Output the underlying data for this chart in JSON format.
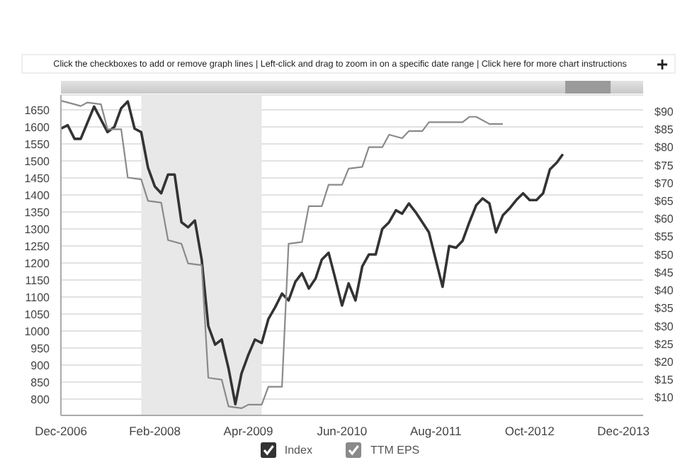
{
  "chart_data": {
    "type": "line",
    "annotations": [
      "Click the checkboxes to add or remove graph lines  |  Left-click and drag to zoom in on a specific date range  |  Click here for more chart instructions"
    ],
    "xlim": [
      "2006-12",
      "2014-03"
    ],
    "xticks": [
      {
        "value": "2006-12",
        "label": "Dec-2006"
      },
      {
        "value": "2008-02",
        "label": "Feb-2008"
      },
      {
        "value": "2009-04",
        "label": "Apr-2009"
      },
      {
        "value": "2010-06",
        "label": "Jun-2010"
      },
      {
        "value": "2011-08",
        "label": "Aug-2011"
      },
      {
        "value": "2012-10",
        "label": "Oct-2012"
      },
      {
        "value": "2013-12",
        "label": "Dec-2013"
      }
    ],
    "ylim": [
      752,
      1694
    ],
    "yticks": [
      800,
      850,
      900,
      950,
      1000,
      1050,
      1100,
      1150,
      1200,
      1250,
      1300,
      1350,
      1400,
      1450,
      1500,
      1550,
      1600,
      1650
    ],
    "y2lim": [
      5,
      94.6
    ],
    "y2ticks": [
      {
        "value": 10,
        "label": "$10"
      },
      {
        "value": 15,
        "label": "$15"
      },
      {
        "value": 20,
        "label": "$20"
      },
      {
        "value": 25,
        "label": "$25"
      },
      {
        "value": 30,
        "label": "$30"
      },
      {
        "value": 35,
        "label": "$35"
      },
      {
        "value": 40,
        "label": "$40"
      },
      {
        "value": 45,
        "label": "$45"
      },
      {
        "value": 50,
        "label": "$50"
      },
      {
        "value": 55,
        "label": "$55"
      },
      {
        "value": 60,
        "label": "$60"
      },
      {
        "value": 65,
        "label": "$65"
      },
      {
        "value": 70,
        "label": "$70"
      },
      {
        "value": 75,
        "label": "$75"
      },
      {
        "value": 80,
        "label": "$80"
      },
      {
        "value": 85,
        "label": "$85"
      },
      {
        "value": 90,
        "label": "$90"
      }
    ],
    "grid": "y",
    "legend": "bottom",
    "marker": "none",
    "line_style": "solid",
    "bands": [
      {
        "axis": "x",
        "from": "2007-12",
        "to": "2009-06",
        "color": "#e8e8e8"
      }
    ],
    "series": [
      {
        "name": "Index",
        "color": "#333333",
        "x": [
          "2006-12",
          "2007-01",
          "2007-02",
          "2007-03",
          "2007-05",
          "2007-07",
          "2007-08",
          "2007-09",
          "2007-10",
          "2007-11",
          "2007-12",
          "2008-01",
          "2008-02",
          "2008-03",
          "2008-04",
          "2008-05",
          "2008-06",
          "2008-07",
          "2008-08",
          "2008-09",
          "2008-10",
          "2008-11",
          "2008-12",
          "2009-01",
          "2009-02",
          "2009-03",
          "2009-04",
          "2009-05",
          "2009-06",
          "2009-07",
          "2009-08",
          "2009-09",
          "2009-10",
          "2009-11",
          "2009-12",
          "2010-01",
          "2010-02",
          "2010-03",
          "2010-04",
          "2010-05",
          "2010-06",
          "2010-07",
          "2010-08",
          "2010-09",
          "2010-10",
          "2010-11",
          "2010-12",
          "2011-01",
          "2011-02",
          "2011-03",
          "2011-04",
          "2011-05",
          "2011-06",
          "2011-07",
          "2011-08",
          "2011-09",
          "2011-10",
          "2011-11",
          "2011-12",
          "2012-01",
          "2012-02",
          "2012-03",
          "2012-04",
          "2012-05",
          "2012-06",
          "2012-07",
          "2012-08",
          "2012-09",
          "2012-10",
          "2012-11",
          "2012-12",
          "2013-01",
          "2013-02",
          "2013-03"
        ],
        "values": [
          1595,
          1605,
          1565,
          1565,
          1660,
          1585,
          1600,
          1655,
          1675,
          1595,
          1585,
          1480,
          1425,
          1405,
          1460,
          1460,
          1320,
          1305,
          1325,
          1210,
          1015,
          960,
          975,
          890,
          785,
          875,
          930,
          975,
          965,
          1035,
          1070,
          1110,
          1090,
          1145,
          1170,
          1125,
          1155,
          1210,
          1230,
          1155,
          1075,
          1140,
          1090,
          1190,
          1225,
          1225,
          1300,
          1320,
          1355,
          1345,
          1375,
          1350,
          1320,
          1290,
          1210,
          1130,
          1250,
          1245,
          1265,
          1320,
          1370,
          1390,
          1375,
          1290,
          1340,
          1360,
          1385,
          1405,
          1385,
          1385,
          1405,
          1475,
          1495,
          1520
        ]
      },
      {
        "name": "TTM EPS",
        "color": "#8a8a8a",
        "axis": "y2",
        "x": [
          "2006-12",
          "2007-02",
          "2007-03",
          "2007-04",
          "2007-06",
          "2007-07",
          "2007-09",
          "2007-10",
          "2007-12",
          "2008-01",
          "2008-03",
          "2008-04",
          "2008-06",
          "2008-07",
          "2008-09",
          "2008-10",
          "2008-12",
          "2009-01",
          "2009-03",
          "2009-04",
          "2009-06",
          "2009-07",
          "2009-09",
          "2009-10",
          "2009-12",
          "2010-01",
          "2010-03",
          "2010-04",
          "2010-06",
          "2010-07",
          "2010-09",
          "2010-10",
          "2010-12",
          "2011-01",
          "2011-03",
          "2011-04",
          "2011-06",
          "2011-07",
          "2011-12",
          "2012-01",
          "2012-02",
          "2012-04",
          "2012-06"
        ],
        "values": [
          93,
          92,
          91.5,
          92.5,
          92,
          85,
          85,
          71.5,
          71,
          65,
          64.5,
          54,
          53,
          47.5,
          47,
          15.5,
          15,
          7.5,
          7,
          8,
          8,
          13,
          13,
          53,
          53.5,
          63.5,
          63.5,
          69.5,
          69.5,
          74,
          74.5,
          80,
          80,
          83.5,
          82.5,
          84.5,
          84.5,
          87,
          87,
          88.5,
          88.5,
          86.5,
          86.5
        ]
      }
    ]
  }
}
